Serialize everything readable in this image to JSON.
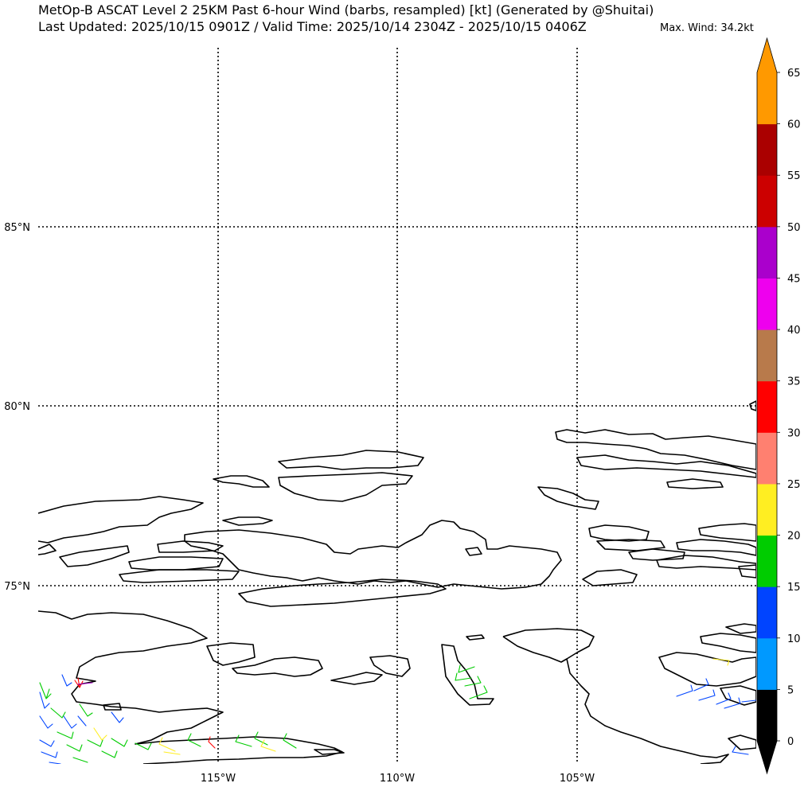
{
  "header": {
    "title_line1": "MetOp-B ASCAT Level 2 25KM Past 6-hour Wind (barbs, resampled) [kt] (Generated by @Shuitai)",
    "title_line2": "Last Updated: 2025/10/15 0901Z / Valid Time: 2025/10/14 2304Z - 2025/10/15 0406Z",
    "max_wind": "Max. Wind: 34.2kt"
  },
  "map": {
    "latitude_labels": [
      "85°N",
      "80°N",
      "75°N"
    ],
    "longitude_labels": [
      "115°W",
      "110°W",
      "105°W"
    ],
    "gridline_style": "dotted",
    "coastline_color": "#000000"
  },
  "colorbar": {
    "unit": "kt",
    "ticks": [
      "0",
      "5",
      "10",
      "15",
      "20",
      "25",
      "30",
      "35",
      "40",
      "45",
      "50",
      "55",
      "60",
      "65"
    ],
    "bins": [
      {
        "min": 0,
        "max": 5,
        "color": "#000000"
      },
      {
        "min": 5,
        "max": 10,
        "color": "#0099ff"
      },
      {
        "min": 10,
        "max": 15,
        "color": "#0044ff"
      },
      {
        "min": 15,
        "max": 20,
        "color": "#00cc00"
      },
      {
        "min": 20,
        "max": 25,
        "color": "#ffee22"
      },
      {
        "min": 25,
        "max": 30,
        "color": "#ff8070"
      },
      {
        "min": 30,
        "max": 35,
        "color": "#ff0000"
      },
      {
        "min": 35,
        "max": 40,
        "color": "#b87a4b"
      },
      {
        "min": 40,
        "max": 45,
        "color": "#ee00ee"
      },
      {
        "min": 45,
        "max": 50,
        "color": "#aa00cc"
      },
      {
        "min": 50,
        "max": 55,
        "color": "#cc0000"
      },
      {
        "min": 55,
        "max": 60,
        "color": "#aa0000"
      },
      {
        "min": 60,
        "max": 65,
        "color": "#ff9900"
      }
    ],
    "under_color": "#000000",
    "over_color": "#ff9900"
  }
}
